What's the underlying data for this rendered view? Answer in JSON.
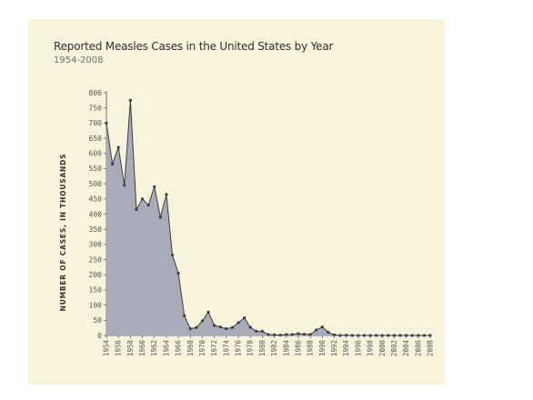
{
  "chart_data": {
    "type": "area",
    "title": "Reported Measles Cases in the United States by Year",
    "subtitle": "1954-2008",
    "xlabel": "",
    "ylabel": "NUMBER OF CASES, IN THOUSANDS",
    "ylim": [
      0,
      800
    ],
    "xlim": [
      1954,
      2008
    ],
    "y_ticks": [
      0,
      50,
      100,
      150,
      200,
      250,
      300,
      350,
      400,
      450,
      500,
      550,
      600,
      650,
      700,
      750,
      800
    ],
    "x_ticks": [
      1954,
      1956,
      1958,
      1960,
      1962,
      1964,
      1966,
      1968,
      1970,
      1972,
      1974,
      1976,
      1978,
      1980,
      1982,
      1984,
      1986,
      1988,
      1990,
      1992,
      1994,
      1996,
      1998,
      2000,
      2002,
      2004,
      2006,
      2008
    ],
    "grid": false,
    "colors": {
      "fill": "#a9abb8",
      "line": "#3c3d48",
      "background": "#f8f4dc",
      "axis": "#555555"
    },
    "x": [
      1954,
      1955,
      1956,
      1957,
      1958,
      1959,
      1960,
      1961,
      1962,
      1963,
      1964,
      1965,
      1966,
      1967,
      1968,
      1969,
      1970,
      1971,
      1972,
      1973,
      1974,
      1975,
      1976,
      1977,
      1978,
      1979,
      1980,
      1981,
      1982,
      1983,
      1984,
      1985,
      1986,
      1987,
      1988,
      1989,
      1990,
      1991,
      1992,
      1993,
      1994,
      1995,
      1996,
      1997,
      1998,
      1999,
      2000,
      2001,
      2002,
      2003,
      2004,
      2005,
      2006,
      2007,
      2008
    ],
    "values": [
      700,
      565,
      620,
      495,
      775,
      415,
      450,
      430,
      490,
      390,
      465,
      265,
      205,
      65,
      22,
      26,
      48,
      77,
      33,
      28,
      22,
      26,
      42,
      58,
      27,
      14,
      14,
      3,
      2,
      1,
      3,
      3,
      6,
      4,
      3,
      18,
      28,
      10,
      2,
      0,
      1,
      0,
      0,
      0,
      0,
      0,
      0,
      0,
      0,
      0,
      0,
      0,
      0,
      0,
      0
    ]
  }
}
